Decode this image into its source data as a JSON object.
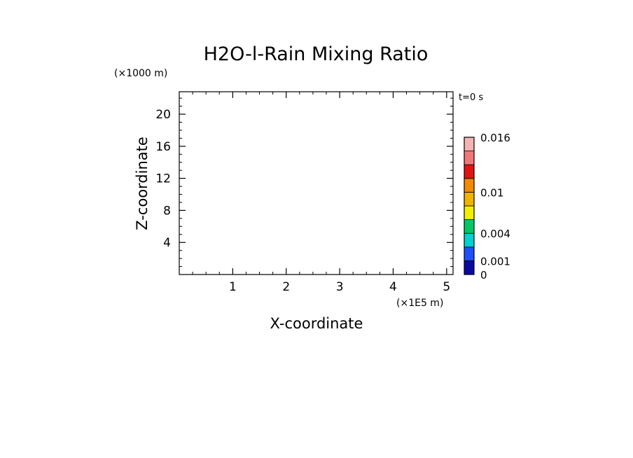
{
  "chart_data": {
    "type": "heatmap",
    "title": "H2O-l-Rain Mixing Ratio",
    "xlabel": "X-coordinate",
    "ylabel": "Z-coordinate",
    "x_unit": "(×1E5 m)",
    "y_unit": "(×1000 m)",
    "time_label": "t=0 s",
    "xlim": [
      0,
      5.12
    ],
    "ylim": [
      0,
      22.8
    ],
    "x_ticks": [
      1,
      2,
      3,
      4,
      5
    ],
    "x_tick_labels": [
      "1",
      "2",
      "3",
      "4",
      "5"
    ],
    "y_ticks": [
      4,
      8,
      12,
      16,
      20
    ],
    "y_tick_labels": [
      "4",
      "8",
      "12",
      "16",
      "20"
    ],
    "grid": false,
    "values": [],
    "colorbar": {
      "levels": [
        0,
        0.001,
        0.002,
        0.004,
        0.006,
        0.008,
        0.01,
        0.012,
        0.014,
        0.016
      ],
      "colors": [
        "#0a0aa0",
        "#1e50ff",
        "#00d2d2",
        "#00c864",
        "#f0f000",
        "#f0b400",
        "#f08c00",
        "#e11414",
        "#f07878",
        "#f5b4b4"
      ],
      "labeled_levels": [
        0,
        0.001,
        0.004,
        0.01,
        0.016
      ],
      "labels": [
        "0",
        "0.001",
        "0.004",
        "0.01",
        "0.016"
      ]
    }
  }
}
